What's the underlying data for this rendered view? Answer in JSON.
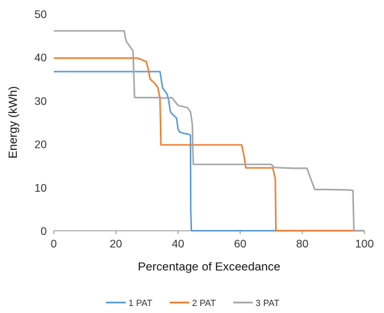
{
  "chart_data": {
    "type": "line",
    "title": "",
    "xlabel": "Percentage of Exceedance",
    "ylabel": "Energy (kWh)",
    "xlim": [
      0,
      100
    ],
    "ylim": [
      0,
      50
    ],
    "x_ticks": [
      0,
      20,
      40,
      60,
      80,
      100
    ],
    "y_ticks": [
      0,
      10,
      20,
      30,
      40,
      50
    ],
    "grid": false,
    "legend_position": "bottom",
    "series": [
      {
        "name": "1 PAT",
        "color": "#5B9BD5",
        "x": [
          0,
          34.2,
          35.0,
          36.5,
          37.0,
          37.5,
          38.0,
          39.5,
          40.0,
          40.5,
          41.5,
          43.7,
          44.0,
          44.1,
          44.3,
          44.5,
          100
        ],
        "y": [
          36.7,
          36.7,
          33.0,
          31.5,
          30.0,
          27.5,
          27.0,
          26.0,
          23.5,
          22.8,
          22.5,
          22.2,
          22.0,
          5.0,
          0,
          0,
          0
        ]
      },
      {
        "name": "2 PAT",
        "color": "#ED7D31",
        "x": [
          0,
          27.0,
          29.8,
          30.5,
          31.0,
          32.5,
          33.5,
          34.2,
          34.5,
          60.5,
          61.3,
          61.8,
          62.5,
          70.5,
          71.3,
          71.5,
          100
        ],
        "y": [
          39.8,
          39.8,
          39.0,
          37.0,
          35.0,
          34.0,
          33.0,
          30.5,
          19.8,
          19.8,
          17.0,
          14.5,
          14.5,
          14.5,
          12.0,
          0,
          0
        ]
      },
      {
        "name": "3 PAT",
        "color": "#A5A5A5",
        "x": [
          0,
          22.7,
          23.0,
          23.5,
          25.5,
          26.0,
          26.3,
          34.0,
          35.0,
          38.0,
          40.0,
          43.0,
          44.0,
          44.6,
          44.9,
          70.0,
          71.0,
          77.0,
          81.5,
          82.2,
          84.0,
          88.0,
          95.0,
          96.3,
          96.6,
          100
        ],
        "y": [
          46.1,
          46.1,
          44.5,
          43.5,
          41.5,
          30.8,
          30.7,
          30.7,
          30.6,
          30.7,
          28.9,
          28.4,
          27.5,
          24.5,
          15.3,
          15.3,
          14.6,
          14.4,
          14.4,
          13.0,
          9.5,
          9.5,
          9.4,
          9.3,
          0,
          0
        ]
      }
    ]
  }
}
